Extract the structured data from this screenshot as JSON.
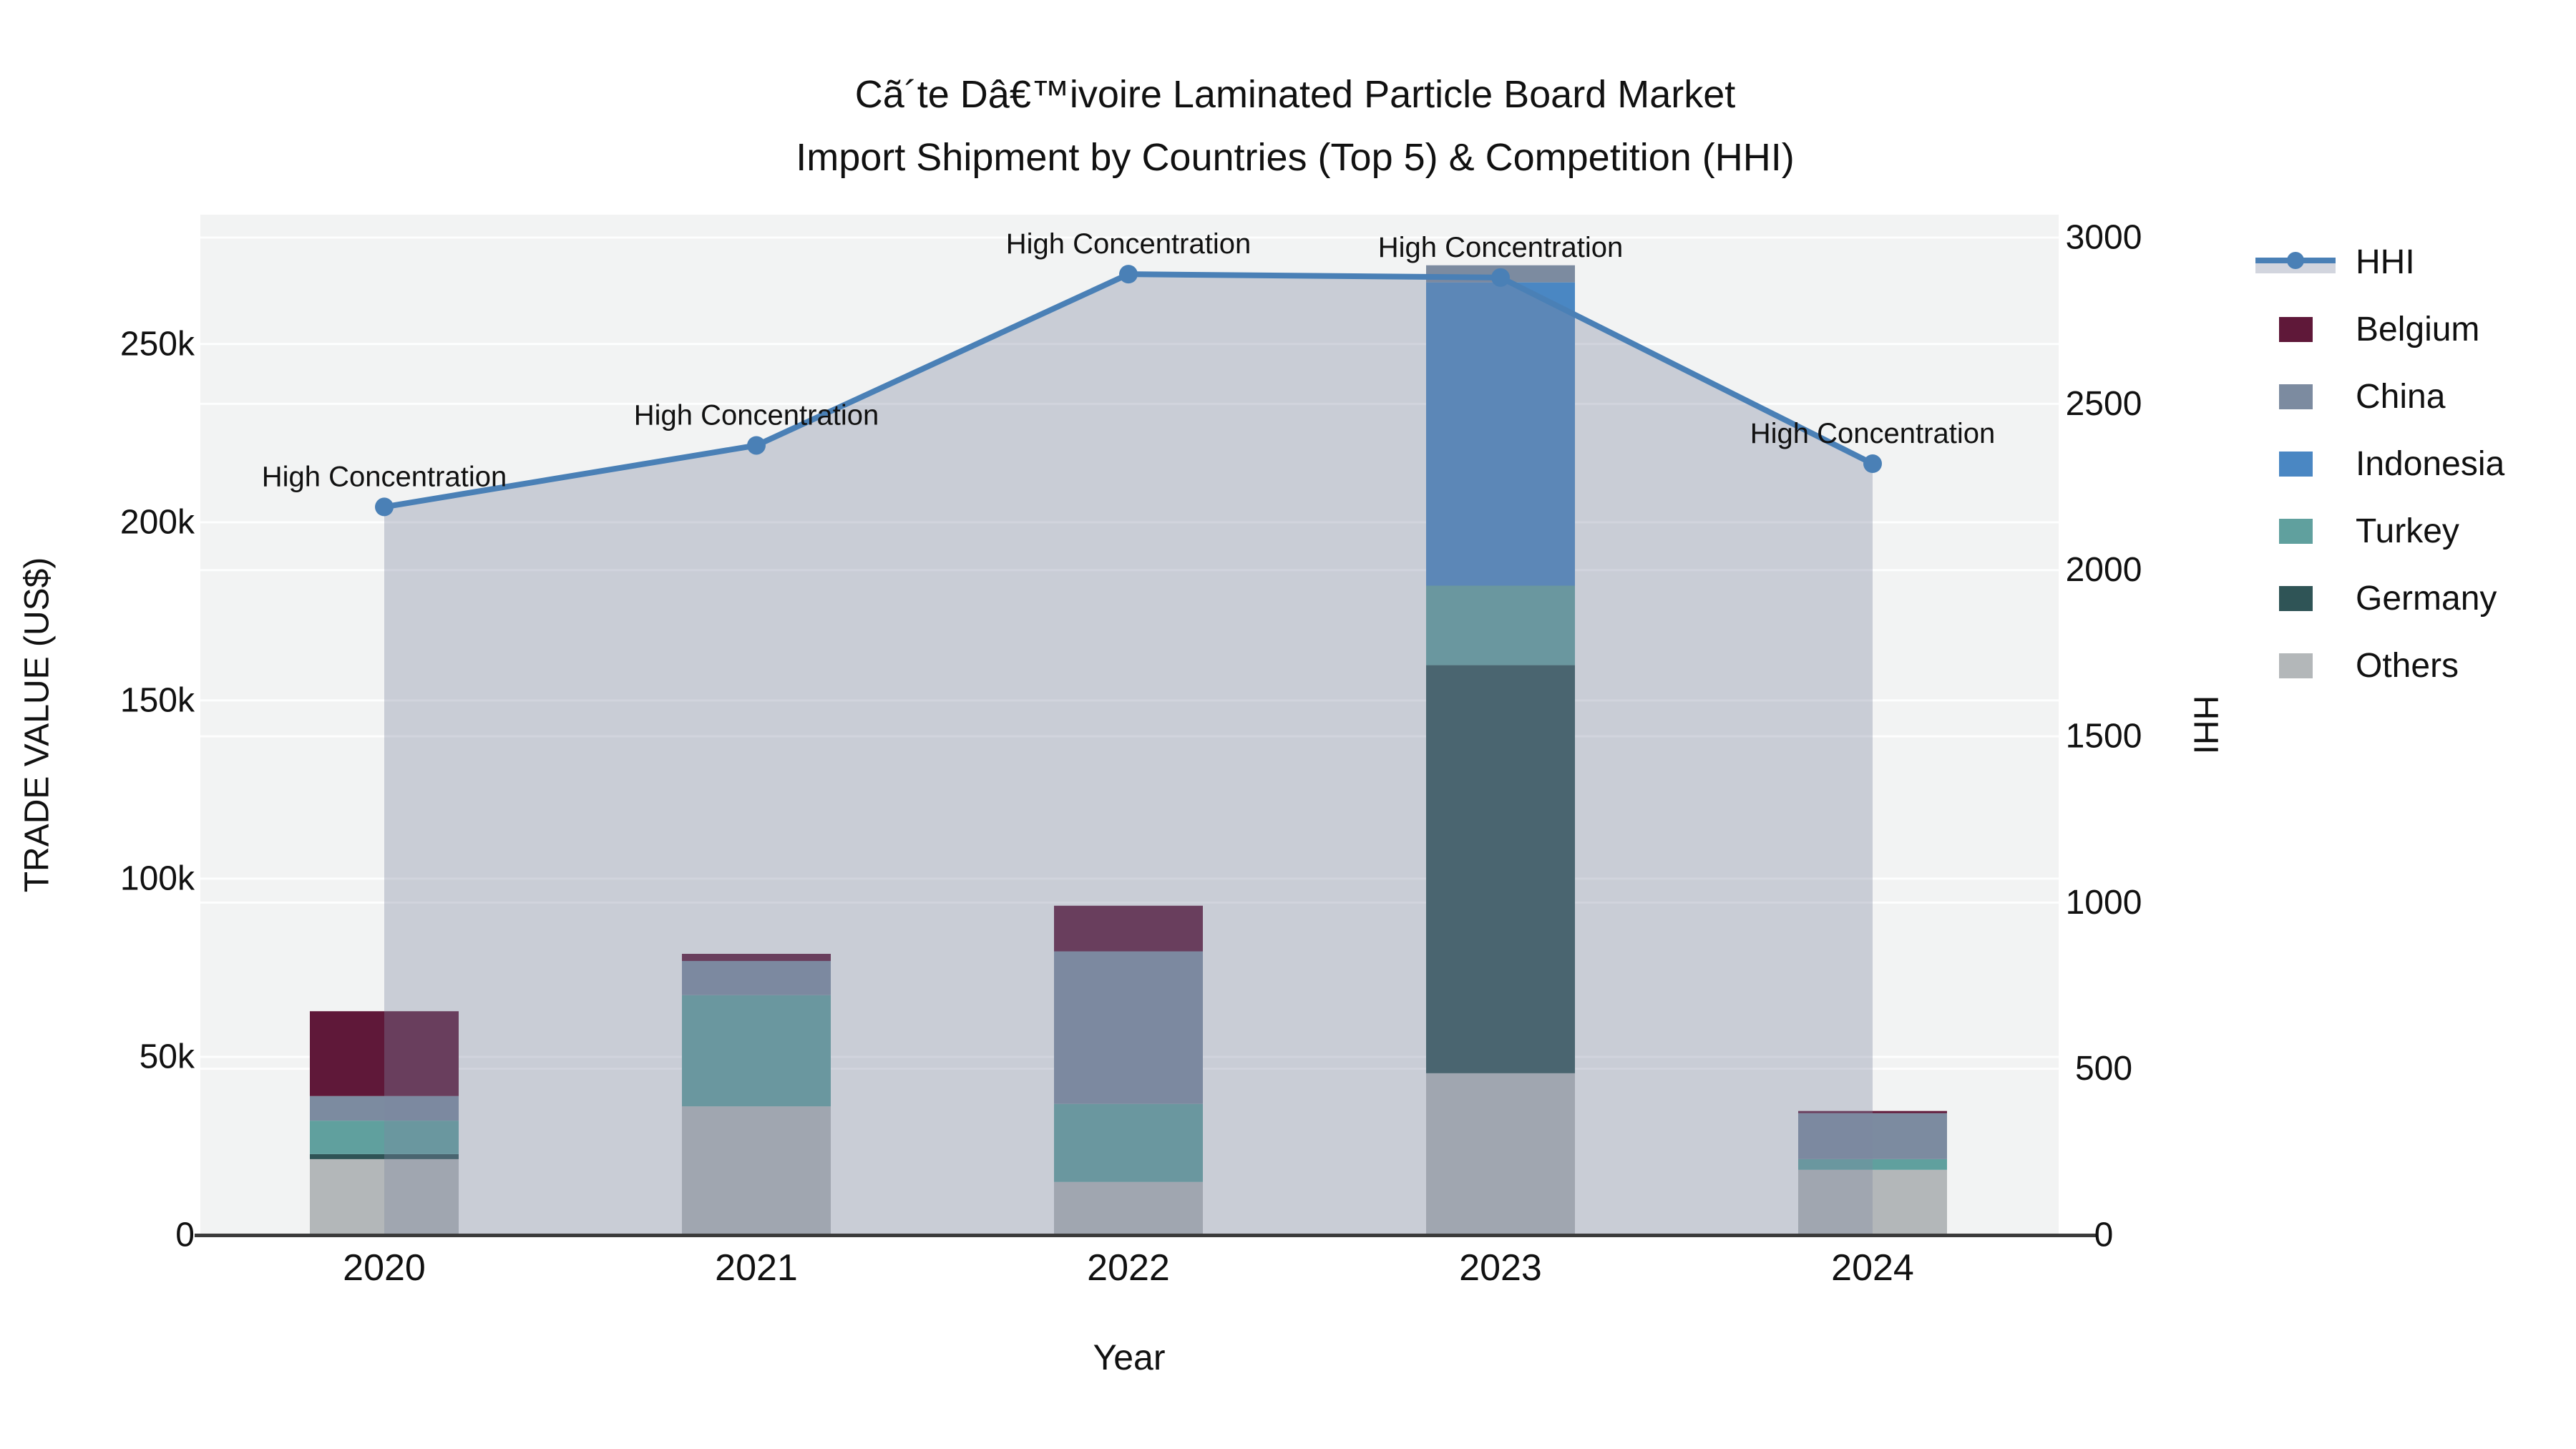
{
  "title": {
    "line1": "Cã´te Dâ€™ivoire Laminated Particle Board Market",
    "line2": "Import Shipment by Countries (Top 5) & Competition (HHI)"
  },
  "legend": {
    "items": [
      {
        "label": "HHI",
        "type": "line",
        "color": "#4a80b6"
      },
      {
        "label": "Belgium",
        "type": "square",
        "color": "#5f1839"
      },
      {
        "label": "China",
        "type": "square",
        "color": "#7c8ba0"
      },
      {
        "label": "Indonesia",
        "type": "square",
        "color": "#4a87c3"
      },
      {
        "label": "Turkey",
        "type": "square",
        "color": "#60a09e"
      },
      {
        "label": "Germany",
        "type": "square",
        "color": "#2f5456"
      },
      {
        "label": "Others",
        "type": "square",
        "color": "#b3b7b9"
      }
    ]
  },
  "chart_data": {
    "type": "combo_stacked_bar_line",
    "x": [
      "2020",
      "2021",
      "2022",
      "2023",
      "2024"
    ],
    "bar_series": [
      {
        "name": "Belgium",
        "color": "#5f1839",
        "values": [
          23800,
          2000,
          12800,
          0,
          600
        ]
      },
      {
        "name": "China",
        "color": "#7c8ba0",
        "values": [
          6900,
          9600,
          42800,
          4800,
          12900
        ]
      },
      {
        "name": "Indonesia",
        "color": "#4a87c3",
        "values": [
          0,
          0,
          0,
          85100,
          0
        ]
      },
      {
        "name": "Turkey",
        "color": "#60a09e",
        "values": [
          9400,
          31200,
          21900,
          22300,
          3000
        ]
      },
      {
        "name": "Germany",
        "color": "#2f5456",
        "values": [
          1400,
          0,
          0,
          114500,
          0
        ]
      },
      {
        "name": "Others",
        "color": "#b3b7b9",
        "values": [
          21300,
          36100,
          14900,
          45400,
          18300
        ]
      }
    ],
    "stack_order_bottom_to_top": [
      "Others",
      "Germany",
      "Turkey",
      "Indonesia",
      "China",
      "Belgium"
    ],
    "line_series": {
      "name": "HHI",
      "color": "#4a80b6",
      "area_fill": "rgba(125,134,160,0.35)",
      "values": [
        2190,
        2375,
        2890,
        2880,
        2320
      ]
    },
    "annotations": [
      "High Concentration",
      "High Concentration",
      "High Concentration",
      "High Concentration",
      "High Concentration"
    ],
    "left_axis": {
      "title": "TRADE VALUE (US$)",
      "tick_labels": [
        "0",
        "50k",
        "100k",
        "150k",
        "200k",
        "250k"
      ],
      "tick_values": [
        0,
        50000,
        100000,
        150000,
        200000,
        250000
      ],
      "max": 286300
    },
    "right_axis": {
      "title": "HHI",
      "tick_labels": [
        "0",
        "500",
        "1000",
        "1500",
        "2000",
        "2500",
        "3000"
      ],
      "tick_values": [
        0,
        500,
        1000,
        1500,
        2000,
        2500,
        3000
      ],
      "max": 3069
    },
    "x_axis": {
      "title": "Year"
    },
    "layout": {
      "plot_background": "#f2f3f3",
      "gridline_color": "rgba(255,255,255,0.85)",
      "axis_line_color": "#3b3b3b",
      "legend_position": "top-right",
      "grid": true
    }
  }
}
